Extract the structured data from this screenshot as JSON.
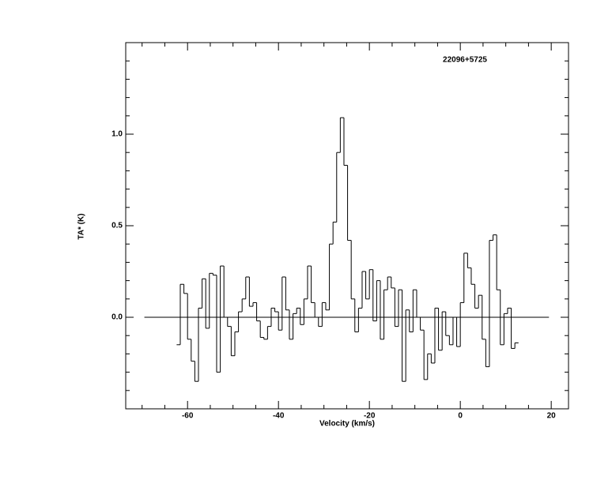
{
  "chart_data": {
    "type": "step",
    "title": "22096+5725",
    "xlabel": "Velocity (km/s)",
    "ylabel": "TA* (K)",
    "color": "#000000",
    "x": [
      -62.0,
      -61.2,
      -60.4,
      -59.6,
      -58.8,
      -58.0,
      -57.2,
      -56.4,
      -55.6,
      -54.8,
      -54.0,
      -53.2,
      -52.4,
      -51.6,
      -50.8,
      -50.0,
      -49.2,
      -48.4,
      -47.6,
      -46.8,
      -46.0,
      -45.2,
      -44.4,
      -43.6,
      -42.8,
      -42.0,
      -41.2,
      -40.4,
      -39.6,
      -38.8,
      -38.0,
      -37.2,
      -36.4,
      -35.6,
      -34.8,
      -34.0,
      -33.2,
      -32.4,
      -31.6,
      -30.8,
      -30.0,
      -29.2,
      -28.4,
      -27.6,
      -26.8,
      -26.0,
      -25.2,
      -24.4,
      -23.6,
      -22.8,
      -22.0,
      -21.2,
      -20.4,
      -19.6,
      -18.8,
      -18.0,
      -17.2,
      -16.4,
      -15.6,
      -14.8,
      -14.0,
      -13.2,
      -12.4,
      -11.6,
      -10.8,
      -10.0,
      -9.2,
      -8.4,
      -7.6,
      -6.8,
      -6.0,
      -5.2,
      -4.4,
      -3.6,
      -2.8,
      -2.0,
      -1.2,
      -0.4,
      0.4,
      1.2,
      2.0,
      2.8,
      3.6,
      4.4,
      5.2,
      6.0,
      6.8,
      7.6,
      8.4,
      9.2,
      10.0,
      10.8,
      11.6,
      12.4
    ],
    "values": [
      -0.15,
      0.18,
      0.13,
      -0.12,
      -0.24,
      -0.35,
      0.05,
      0.21,
      -0.06,
      0.24,
      0.23,
      -0.3,
      0.28,
      0.0,
      -0.05,
      -0.21,
      -0.08,
      0.03,
      0.1,
      0.22,
      0.06,
      0.08,
      -0.02,
      -0.11,
      -0.12,
      -0.05,
      0.05,
      0.03,
      -0.07,
      0.22,
      0.04,
      -0.12,
      0.02,
      0.05,
      -0.04,
      0.1,
      0.28,
      0.08,
      0.0,
      -0.05,
      0.08,
      0.04,
      0.4,
      0.52,
      0.9,
      1.09,
      0.83,
      0.42,
      0.1,
      -0.08,
      0.05,
      0.25,
      0.1,
      0.26,
      -0.02,
      0.2,
      -0.12,
      0.15,
      0.22,
      0.16,
      -0.05,
      0.15,
      -0.35,
      0.04,
      -0.08,
      0.15,
      0.0,
      -0.07,
      -0.34,
      -0.2,
      -0.25,
      0.05,
      -0.18,
      0.03,
      -0.1,
      -0.15,
      0.0,
      -0.16,
      0.08,
      0.35,
      0.27,
      0.18,
      0.05,
      0.12,
      -0.12,
      -0.27,
      0.42,
      0.45,
      0.15,
      -0.15,
      0.02,
      0.05,
      -0.17,
      -0.14
    ],
    "baseline": {
      "y": 0,
      "x": [
        -69.5,
        19.5
      ]
    },
    "xlim": [
      -73.6,
      23.8
    ],
    "xticks": [
      -60,
      -40,
      -20,
      0,
      20
    ],
    "xminor": [
      -70,
      -65,
      -55,
      -50,
      -45,
      -35,
      -30,
      -25,
      -15,
      -10,
      -5,
      5,
      10,
      15
    ],
    "ylim": [
      -0.5,
      1.5
    ],
    "yticks": [
      {
        "value": 0,
        "label": "0.0"
      },
      {
        "value": 0.5,
        "label": "0.5"
      },
      {
        "value": 1,
        "label": "1.0"
      }
    ],
    "yminor": [
      -0.4,
      -0.3,
      -0.2,
      -0.1,
      0.1,
      0.2,
      0.3,
      0.4,
      0.6,
      0.7,
      0.8,
      0.9,
      1.1,
      1.2,
      1.3,
      1.4
    ],
    "grid": false
  }
}
